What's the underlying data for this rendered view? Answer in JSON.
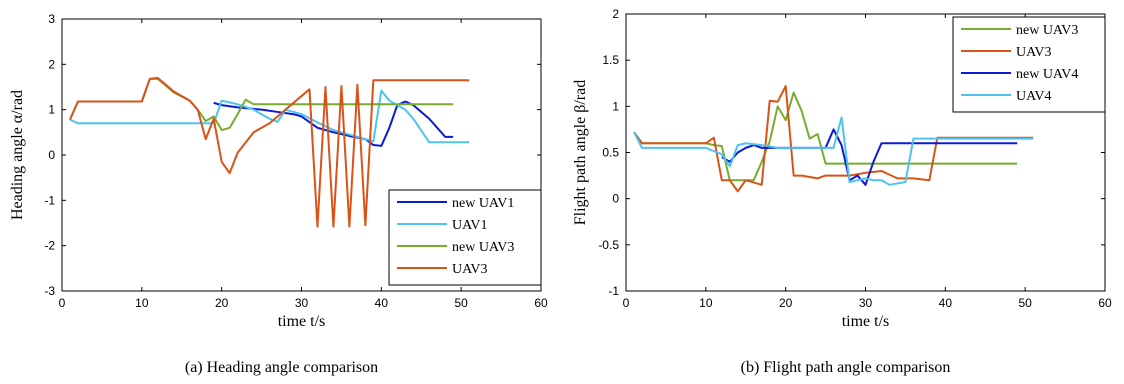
{
  "chart_data": [
    {
      "type": "line",
      "caption": "(a) Heading angle comparison",
      "xlabel": "time t/s",
      "ylabel": "Heading angle α/rad",
      "xlim": [
        0,
        60
      ],
      "ylim": [
        -3,
        3
      ],
      "xticks": [
        0,
        10,
        20,
        30,
        40,
        50,
        60
      ],
      "yticks": [
        -3,
        -2,
        -1,
        0,
        1,
        2,
        3
      ],
      "legend_position": "bottom-right",
      "grid": false,
      "series": [
        {
          "name": "new UAV1",
          "color": "#0a1ad6",
          "points": [
            [
              19,
              1.15
            ],
            [
              20,
              1.1
            ],
            [
              22,
              1.05
            ],
            [
              25,
              1.0
            ],
            [
              27,
              0.95
            ],
            [
              29,
              0.9
            ],
            [
              30,
              0.85
            ],
            [
              32,
              0.6
            ],
            [
              34,
              0.5
            ],
            [
              36,
              0.42
            ],
            [
              38,
              0.35
            ],
            [
              39,
              0.22
            ],
            [
              40,
              0.2
            ],
            [
              41,
              0.6
            ],
            [
              42,
              1.1
            ],
            [
              43,
              1.18
            ],
            [
              44,
              1.1
            ],
            [
              46,
              0.8
            ],
            [
              48,
              0.4
            ],
            [
              49,
              0.4
            ]
          ]
        },
        {
          "name": "UAV1",
          "color": "#4fc3f0",
          "points": [
            [
              1,
              0.78
            ],
            [
              2,
              0.7
            ],
            [
              10,
              0.7
            ],
            [
              19,
              0.7
            ],
            [
              20,
              1.2
            ],
            [
              22,
              1.12
            ],
            [
              24,
              1.0
            ],
            [
              25,
              0.9
            ],
            [
              26,
              0.8
            ],
            [
              27,
              0.73
            ],
            [
              28,
              1.0
            ],
            [
              30,
              0.9
            ],
            [
              32,
              0.72
            ],
            [
              34,
              0.55
            ],
            [
              36,
              0.45
            ],
            [
              38,
              0.35
            ],
            [
              39,
              0.3
            ],
            [
              40,
              1.42
            ],
            [
              41,
              1.2
            ],
            [
              43,
              1.0
            ],
            [
              44,
              0.8
            ],
            [
              46,
              0.28
            ],
            [
              51,
              0.28
            ]
          ]
        },
        {
          "name": "new UAV3",
          "color": "#77ac30",
          "points": [
            [
              1,
              0.78
            ],
            [
              2,
              1.18
            ],
            [
              10,
              1.18
            ],
            [
              11,
              1.68
            ],
            [
              12,
              1.68
            ],
            [
              14,
              1.38
            ],
            [
              16,
              1.2
            ],
            [
              17,
              1.0
            ],
            [
              18,
              0.75
            ],
            [
              19,
              0.85
            ],
            [
              20,
              0.55
            ],
            [
              21,
              0.6
            ],
            [
              22,
              0.9
            ],
            [
              23,
              1.22
            ],
            [
              24,
              1.12
            ],
            [
              30,
              1.12
            ],
            [
              49,
              1.12
            ]
          ]
        },
        {
          "name": "UAV3",
          "color": "#d95319",
          "points": [
            [
              1,
              0.78
            ],
            [
              2,
              1.18
            ],
            [
              10,
              1.18
            ],
            [
              11,
              1.68
            ],
            [
              12,
              1.7
            ],
            [
              14,
              1.4
            ],
            [
              16,
              1.2
            ],
            [
              17,
              1.0
            ],
            [
              18,
              0.35
            ],
            [
              19,
              0.8
            ],
            [
              20,
              -0.15
            ],
            [
              21,
              -0.4
            ],
            [
              22,
              0.05
            ],
            [
              24,
              0.5
            ],
            [
              26,
              0.7
            ],
            [
              28,
              1.0
            ],
            [
              30,
              1.3
            ],
            [
              31,
              1.45
            ],
            [
              32,
              -1.58
            ],
            [
              33,
              1.5
            ],
            [
              34,
              -1.58
            ],
            [
              35,
              1.52
            ],
            [
              36,
              -1.58
            ],
            [
              37,
              1.55
            ],
            [
              38,
              -1.55
            ],
            [
              39,
              1.65
            ],
            [
              51,
              1.65
            ]
          ]
        }
      ]
    },
    {
      "type": "line",
      "caption": "(b) Flight path angle comparison",
      "xlabel": "time t/s",
      "ylabel": "Flight path angle β/rad",
      "xlim": [
        0,
        60
      ],
      "ylim": [
        -1,
        2
      ],
      "xticks": [
        0,
        10,
        20,
        30,
        40,
        50,
        60
      ],
      "yticks": [
        -1,
        -0.5,
        0,
        0.5,
        1,
        1.5,
        2
      ],
      "legend_position": "top-right",
      "grid": false,
      "series": [
        {
          "name": "new UAV3",
          "color": "#77ac30",
          "points": [
            [
              1,
              0.72
            ],
            [
              2,
              0.6
            ],
            [
              10,
              0.6
            ],
            [
              11,
              0.58
            ],
            [
              12,
              0.57
            ],
            [
              13,
              0.2
            ],
            [
              14,
              0.2
            ],
            [
              16,
              0.2
            ],
            [
              17,
              0.4
            ],
            [
              18,
              0.62
            ],
            [
              19,
              1.0
            ],
            [
              20,
              0.85
            ],
            [
              21,
              1.15
            ],
            [
              22,
              0.95
            ],
            [
              23,
              0.65
            ],
            [
              24,
              0.7
            ],
            [
              25,
              0.38
            ],
            [
              30,
              0.38
            ],
            [
              49,
              0.38
            ]
          ]
        },
        {
          "name": "UAV3",
          "color": "#d95319",
          "points": [
            [
              1,
              0.72
            ],
            [
              2,
              0.6
            ],
            [
              10,
              0.6
            ],
            [
              11,
              0.66
            ],
            [
              12,
              0.2
            ],
            [
              13,
              0.2
            ],
            [
              14,
              0.08
            ],
            [
              15,
              0.2
            ],
            [
              17,
              0.15
            ],
            [
              18,
              1.06
            ],
            [
              19,
              1.05
            ],
            [
              20,
              1.22
            ],
            [
              21,
              0.25
            ],
            [
              22,
              0.25
            ],
            [
              24,
              0.22
            ],
            [
              25,
              0.25
            ],
            [
              28,
              0.25
            ],
            [
              30,
              0.28
            ],
            [
              32,
              0.3
            ],
            [
              34,
              0.22
            ],
            [
              36,
              0.22
            ],
            [
              38,
              0.2
            ],
            [
              39,
              0.66
            ],
            [
              51,
              0.66
            ]
          ]
        },
        {
          "name": "new UAV4",
          "color": "#0a1ad6",
          "points": [
            [
              12,
              0.45
            ],
            [
              13,
              0.4
            ],
            [
              14,
              0.5
            ],
            [
              15,
              0.55
            ],
            [
              16,
              0.58
            ],
            [
              17,
              0.55
            ],
            [
              18,
              0.55
            ],
            [
              25,
              0.55
            ],
            [
              26,
              0.75
            ],
            [
              27,
              0.58
            ],
            [
              28,
              0.2
            ],
            [
              29,
              0.25
            ],
            [
              30,
              0.15
            ],
            [
              31,
              0.4
            ],
            [
              32,
              0.6
            ],
            [
              35,
              0.6
            ],
            [
              40,
              0.6
            ],
            [
              49,
              0.6
            ]
          ]
        },
        {
          "name": "UAV4",
          "color": "#4fc3f0",
          "points": [
            [
              1,
              0.72
            ],
            [
              2,
              0.55
            ],
            [
              10,
              0.55
            ],
            [
              12,
              0.48
            ],
            [
              13,
              0.35
            ],
            [
              14,
              0.58
            ],
            [
              15,
              0.6
            ],
            [
              17,
              0.58
            ],
            [
              19,
              0.55
            ],
            [
              22,
              0.55
            ],
            [
              26,
              0.55
            ],
            [
              27,
              0.88
            ],
            [
              28,
              0.18
            ],
            [
              30,
              0.22
            ],
            [
              31,
              0.2
            ],
            [
              32,
              0.2
            ],
            [
              33,
              0.15
            ],
            [
              35,
              0.18
            ],
            [
              36,
              0.65
            ],
            [
              39,
              0.65
            ],
            [
              51,
              0.65
            ]
          ]
        }
      ]
    }
  ]
}
